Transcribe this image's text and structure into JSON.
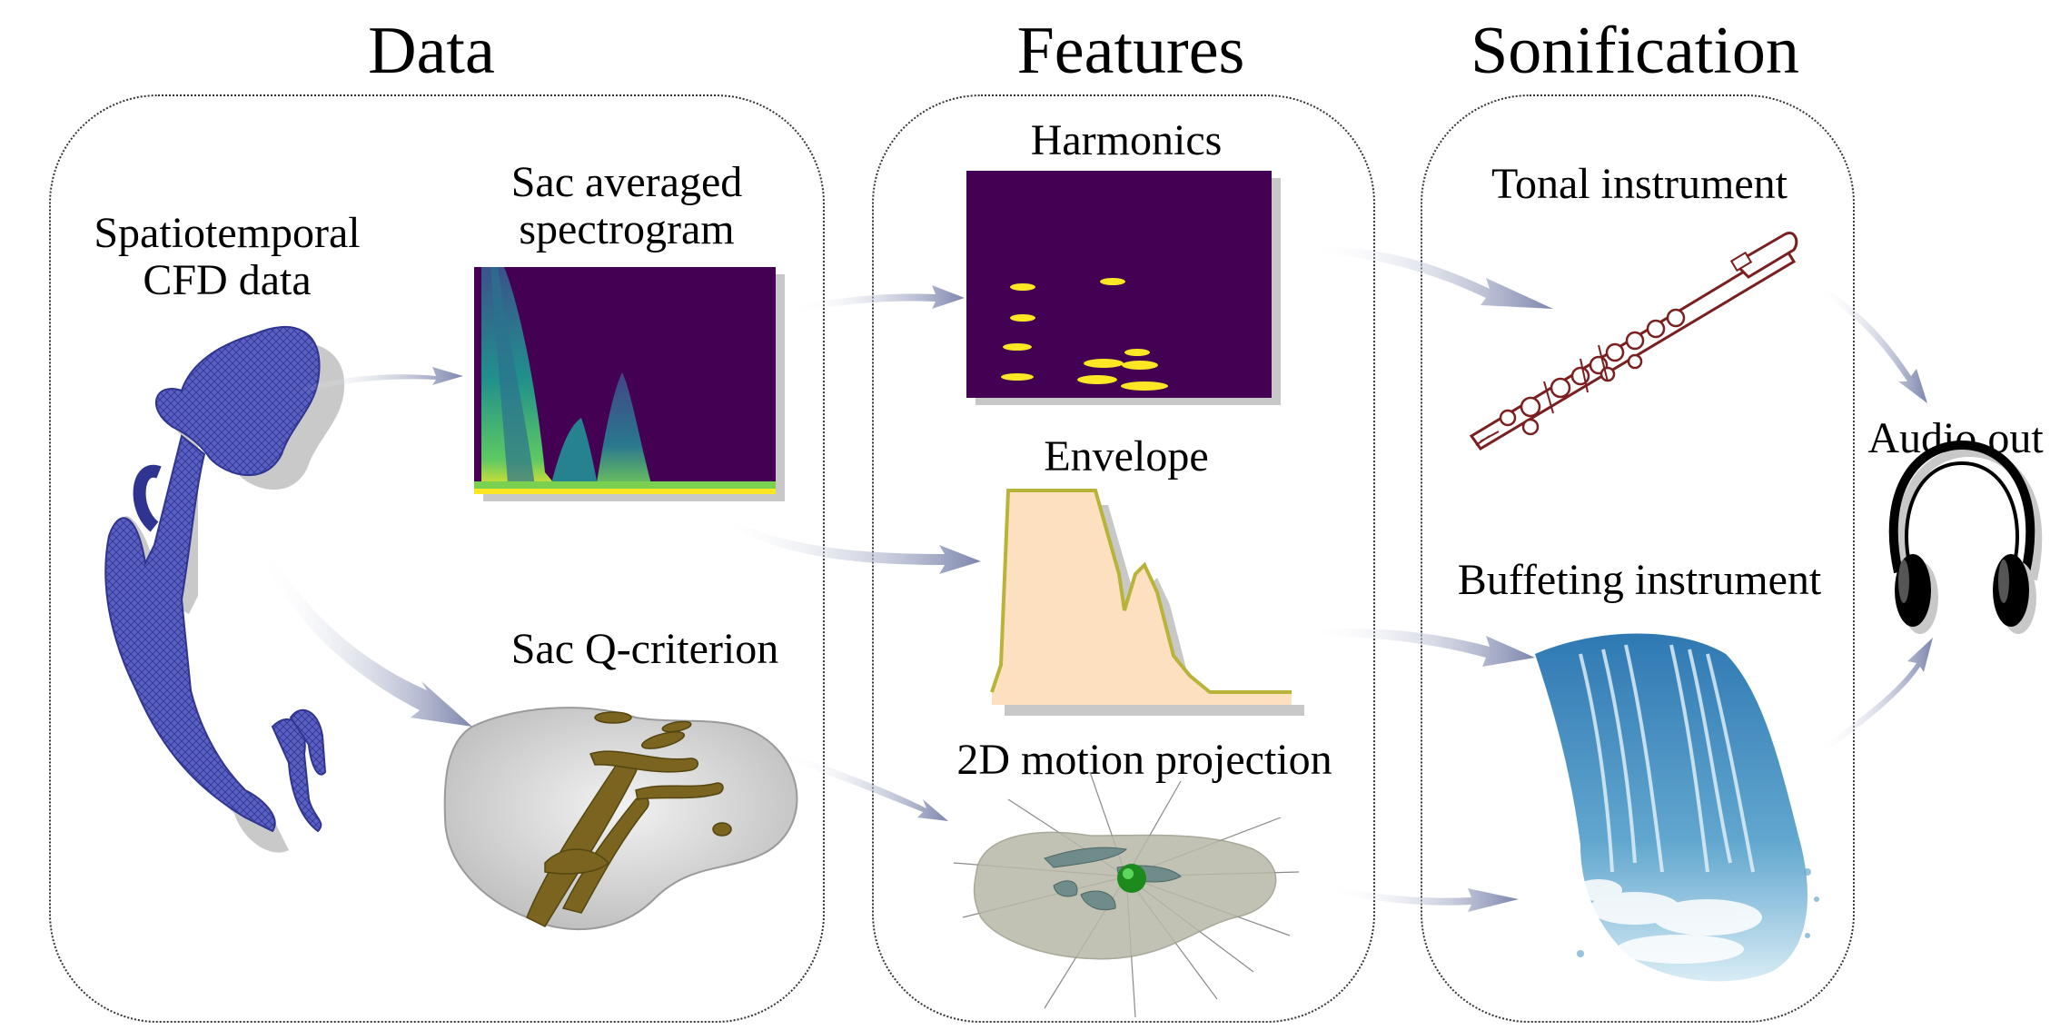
{
  "sections": {
    "data": {
      "title": "Data"
    },
    "features": {
      "title": "Features"
    },
    "sonification": {
      "title": "Sonification"
    }
  },
  "labels": {
    "cfd_line1": "Spatiotemporal",
    "cfd_line2": "CFD data",
    "spectro_line1": "Sac averaged",
    "spectro_line2": "spectrogram",
    "qcrit": "Sac Q-criterion",
    "harmonics": "Harmonics",
    "envelope": "Envelope",
    "motion": "2D motion projection",
    "tonal": "Tonal instrument",
    "buffeting": "Buffeting instrument",
    "audio": "Audio out"
  },
  "colors": {
    "mesh": "#4a4fb0",
    "spectro_bg": "#440154",
    "peak": "#fde725",
    "envelope_fill": "#fde0c0",
    "envelope_line": "#b8b43a",
    "flute": "#7a1f1f",
    "qcrit": "#7a6420",
    "arrow": "#8a93b8",
    "water": "#3f8fc2"
  },
  "icons": {
    "flute": "flute-icon",
    "headphones": "headphones-icon",
    "waterfall": "waterfall-icon",
    "aneurysm": "aneurysm-mesh-icon"
  }
}
